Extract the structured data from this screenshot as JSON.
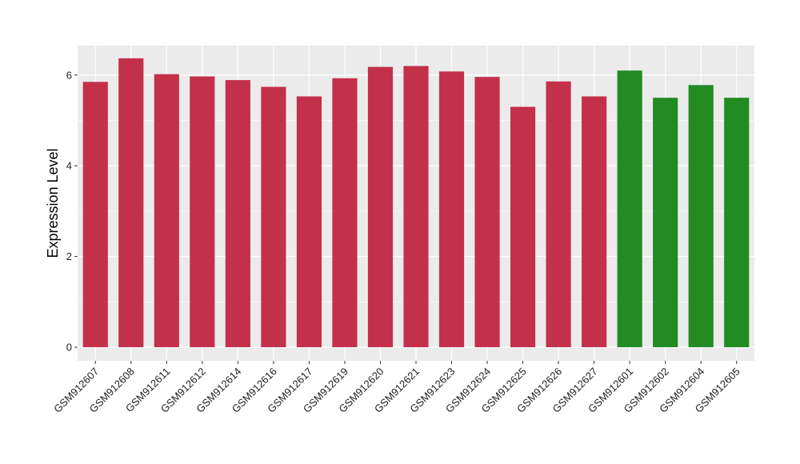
{
  "chart_data": {
    "type": "bar",
    "title": "",
    "xlabel": "",
    "ylabel": "Expression Level",
    "ylim": [
      -0.3,
      6.65
    ],
    "yticks": [
      0,
      2,
      4,
      6
    ],
    "grid": true,
    "legend": "none",
    "colors": {
      "group1": "#c3304a",
      "group2": "#228b22",
      "panel": "#ebebeb",
      "grid": "#ffffff"
    },
    "categories": [
      "GSM912607",
      "GSM912608",
      "GSM912611",
      "GSM912612",
      "GSM912614",
      "GSM912616",
      "GSM912617",
      "GSM912619",
      "GSM912620",
      "GSM912621",
      "GSM912623",
      "GSM912624",
      "GSM912625",
      "GSM912626",
      "GSM912627",
      "GSM912601",
      "GSM912602",
      "GSM912604",
      "GSM912605"
    ],
    "values": [
      5.85,
      6.37,
      6.02,
      5.97,
      5.89,
      5.74,
      5.53,
      5.93,
      6.18,
      6.2,
      6.08,
      5.96,
      5.3,
      5.86,
      5.53,
      6.1,
      5.5,
      5.78,
      5.5
    ],
    "groups": [
      "group1",
      "group1",
      "group1",
      "group1",
      "group1",
      "group1",
      "group1",
      "group1",
      "group1",
      "group1",
      "group1",
      "group1",
      "group1",
      "group1",
      "group1",
      "group2",
      "group2",
      "group2",
      "group2"
    ]
  }
}
